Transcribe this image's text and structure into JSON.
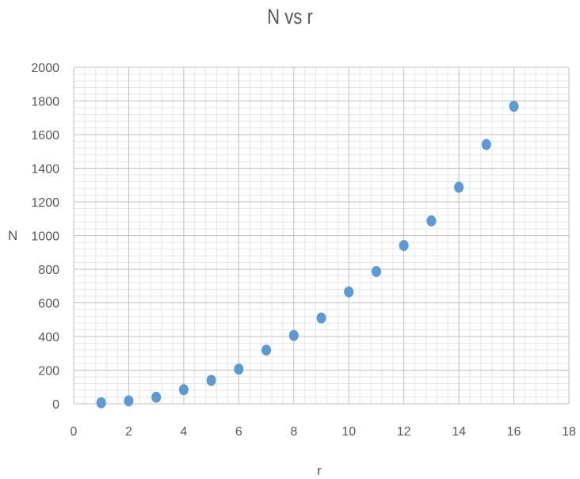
{
  "chart_data": {
    "type": "scatter",
    "title": "N vs r",
    "xlabel": "r",
    "ylabel": "N",
    "xlim": [
      0,
      18
    ],
    "ylim": [
      0,
      2000
    ],
    "xticks": [
      0,
      2,
      4,
      6,
      8,
      10,
      12,
      14,
      16,
      18
    ],
    "yticks": [
      0,
      200,
      400,
      600,
      800,
      1000,
      1200,
      1400,
      1600,
      1800,
      2000
    ],
    "grid": true,
    "legend": "none",
    "marker_color": "#5b9bd5",
    "series": [
      {
        "x": [
          1,
          2,
          3,
          4,
          5,
          6,
          7,
          8,
          9,
          10,
          11,
          12,
          13,
          14,
          15,
          16
        ],
        "y": [
          6,
          17,
          39,
          84,
          139,
          206,
          319,
          406,
          510,
          665,
          786,
          941,
          1087,
          1287,
          1541,
          1768
        ]
      }
    ]
  }
}
